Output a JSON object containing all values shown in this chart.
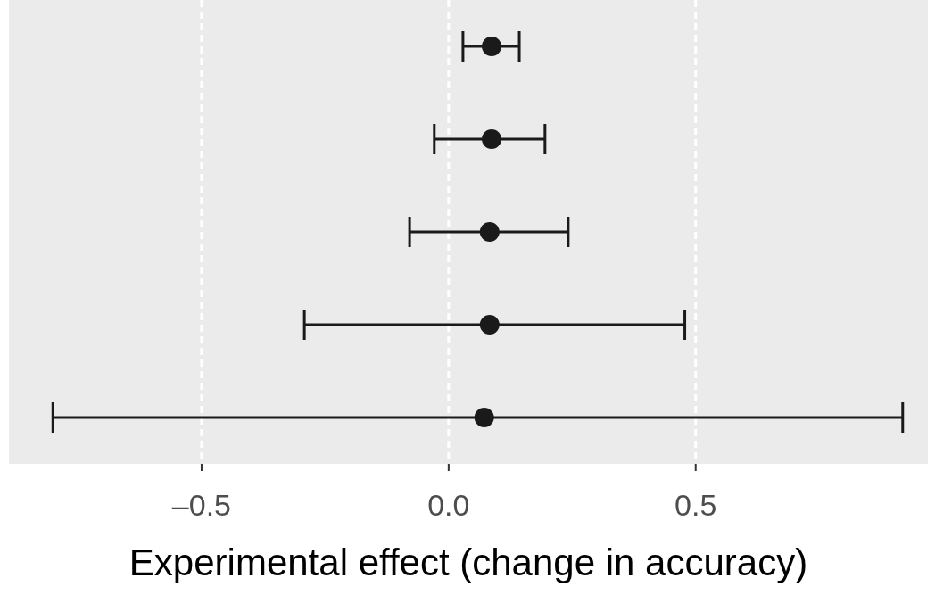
{
  "chart_data": {
    "type": "scatter",
    "orientation": "horizontal",
    "xlabel": "Experimental effect (change in accuracy)",
    "categories": [
      null,
      null,
      null,
      null,
      null
    ],
    "values": [
      0.087,
      0.087,
      0.083,
      0.083,
      0.072
    ],
    "errors": [
      [
        0.029,
        0.143
      ],
      [
        -0.029,
        0.195
      ],
      [
        -0.079,
        0.242
      ],
      [
        -0.292,
        0.478
      ],
      [
        -0.801,
        0.919
      ]
    ],
    "color": "#1a1a1a",
    "marker": "circle",
    "xlim": [
      -0.89,
      0.97
    ],
    "xticks": [
      {
        "value": -0.5,
        "label": "–0.5"
      },
      {
        "value": 0,
        "label": "0.0"
      },
      {
        "value": 0.5,
        "label": "0.5"
      }
    ],
    "grid": "x",
    "tick_labels": "x"
  }
}
